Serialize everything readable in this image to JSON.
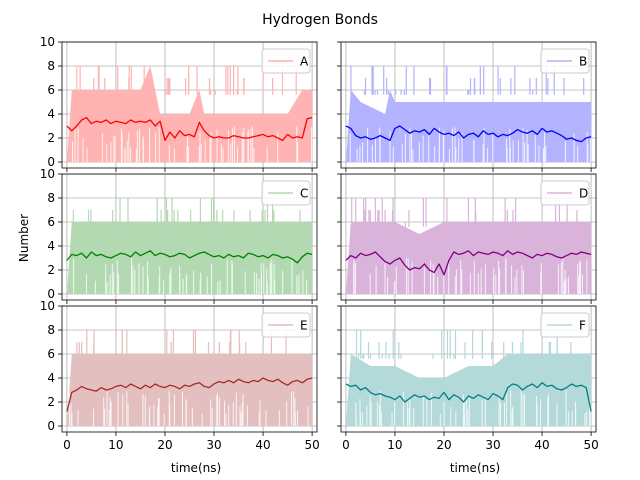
{
  "figure": {
    "title": "Hydrogen Bonds",
    "ylabel": "Number",
    "xlabel": "time(ns)"
  },
  "chart_data": {
    "type": "line",
    "title": "Hydrogen Bonds",
    "xlabel": "time(ns)",
    "ylabel": "Number",
    "xlim": [
      -1,
      51
    ],
    "ylim": [
      -0.5,
      10
    ],
    "xticks": [
      0,
      10,
      20,
      30,
      40,
      50
    ],
    "yticks": [
      0,
      2,
      4,
      6,
      8,
      10
    ],
    "grid": true,
    "layout": "3x2 subplots, shared x and y axes",
    "legend_placement": "upper right",
    "notes": "Each panel shows a raw hydrogen-bond count trace (light shaded vertical spikes, values 0-8) and a darker smoothed running-average line.",
    "panels": [
      {
        "name": "A",
        "color": "#ff0000",
        "fill": "#ffb3b3",
        "envelope": [
          [
            0,
            0
          ],
          [
            1,
            6
          ],
          [
            5,
            6
          ],
          [
            10,
            6
          ],
          [
            15,
            6
          ],
          [
            17,
            8
          ],
          [
            18,
            6
          ],
          [
            19,
            4
          ],
          [
            25,
            4
          ],
          [
            27,
            6
          ],
          [
            28,
            4
          ],
          [
            35,
            4
          ],
          [
            40,
            4
          ],
          [
            45,
            4
          ],
          [
            48,
            6
          ],
          [
            50,
            6
          ]
        ],
        "x": [
          0,
          1,
          2,
          3,
          4,
          5,
          6,
          7,
          8,
          9,
          10,
          11,
          12,
          13,
          14,
          15,
          16,
          17,
          18,
          19,
          20,
          21,
          22,
          23,
          24,
          25,
          26,
          27,
          28,
          29,
          30,
          31,
          32,
          33,
          34,
          35,
          36,
          37,
          38,
          39,
          40,
          41,
          42,
          43,
          44,
          45,
          46,
          47,
          48,
          49,
          50
        ],
        "y": [
          3.0,
          2.6,
          3.0,
          3.5,
          3.7,
          3.2,
          3.4,
          3.3,
          3.5,
          3.2,
          3.4,
          3.3,
          3.2,
          3.5,
          3.3,
          3.4,
          3.3,
          3.5,
          3.0,
          3.4,
          1.8,
          2.5,
          2.0,
          2.6,
          2.2,
          2.3,
          2.1,
          3.3,
          2.6,
          2.2,
          2.0,
          2.1,
          2.0,
          2.0,
          2.2,
          2.1,
          2.0,
          2.0,
          2.1,
          2.2,
          2.3,
          2.1,
          2.2,
          2.0,
          1.8,
          2.3,
          2.0,
          2.1,
          2.0,
          3.6,
          3.7
        ]
      },
      {
        "name": "B",
        "color": "#0000ff",
        "fill": "#b3b3ff",
        "envelope": [
          [
            0,
            0
          ],
          [
            1,
            6
          ],
          [
            3,
            5
          ],
          [
            8,
            4
          ],
          [
            9,
            6
          ],
          [
            10,
            5
          ],
          [
            20,
            5
          ],
          [
            25,
            5
          ],
          [
            30,
            5
          ],
          [
            40,
            5
          ],
          [
            45,
            5
          ],
          [
            50,
            5
          ]
        ],
        "x": [
          0,
          1,
          2,
          3,
          4,
          5,
          6,
          7,
          8,
          9,
          10,
          11,
          12,
          13,
          14,
          15,
          16,
          17,
          18,
          19,
          20,
          21,
          22,
          23,
          24,
          25,
          26,
          27,
          28,
          29,
          30,
          31,
          32,
          33,
          34,
          35,
          36,
          37,
          38,
          39,
          40,
          41,
          42,
          43,
          44,
          45,
          46,
          47,
          48,
          49,
          50
        ],
        "y": [
          3.0,
          2.8,
          2.2,
          2.0,
          2.1,
          1.9,
          2.0,
          2.2,
          2.0,
          1.8,
          2.8,
          3.0,
          2.7,
          2.4,
          2.6,
          2.5,
          2.7,
          2.3,
          2.8,
          2.5,
          2.3,
          2.4,
          2.2,
          2.5,
          2.0,
          2.3,
          2.4,
          2.1,
          2.6,
          2.3,
          2.4,
          2.1,
          2.3,
          2.2,
          2.4,
          2.7,
          2.5,
          2.4,
          2.6,
          2.3,
          2.8,
          2.5,
          2.6,
          2.4,
          2.2,
          1.9,
          2.0,
          1.8,
          1.7,
          2.0,
          2.1
        ]
      },
      {
        "name": "C",
        "color": "#008000",
        "fill": "#b3d9b3",
        "envelope": [
          [
            0,
            0
          ],
          [
            1,
            6
          ],
          [
            10,
            6
          ],
          [
            20,
            6
          ],
          [
            30,
            6
          ],
          [
            40,
            6
          ],
          [
            50,
            6
          ]
        ],
        "x": [
          0,
          1,
          2,
          3,
          4,
          5,
          6,
          7,
          8,
          9,
          10,
          11,
          12,
          13,
          14,
          15,
          16,
          17,
          18,
          19,
          20,
          21,
          22,
          23,
          24,
          25,
          26,
          27,
          28,
          29,
          30,
          31,
          32,
          33,
          34,
          35,
          36,
          37,
          38,
          39,
          40,
          41,
          42,
          43,
          44,
          45,
          46,
          47,
          48,
          49,
          50
        ],
        "y": [
          2.8,
          3.3,
          3.2,
          3.4,
          3.0,
          3.5,
          3.2,
          3.3,
          3.1,
          3.0,
          3.2,
          3.4,
          3.3,
          3.1,
          3.5,
          3.2,
          3.4,
          3.6,
          3.2,
          3.4,
          3.3,
          3.1,
          3.2,
          3.4,
          3.3,
          3.0,
          3.2,
          3.4,
          3.5,
          3.3,
          3.1,
          3.2,
          3.0,
          3.3,
          3.1,
          3.2,
          3.0,
          3.4,
          3.3,
          3.1,
          3.2,
          3.0,
          3.3,
          3.2,
          3.0,
          3.1,
          2.9,
          2.6,
          3.1,
          3.4,
          3.3
        ]
      },
      {
        "name": "D",
        "color": "#800080",
        "fill": "#d9b3d9",
        "envelope": [
          [
            0,
            0
          ],
          [
            1,
            6
          ],
          [
            5,
            6
          ],
          [
            10,
            6
          ],
          [
            15,
            5
          ],
          [
            20,
            6
          ],
          [
            25,
            6
          ],
          [
            30,
            6
          ],
          [
            40,
            6
          ],
          [
            50,
            6
          ]
        ],
        "x": [
          0,
          1,
          2,
          3,
          4,
          5,
          6,
          7,
          8,
          9,
          10,
          11,
          12,
          13,
          14,
          15,
          16,
          17,
          18,
          19,
          20,
          21,
          22,
          23,
          24,
          25,
          26,
          27,
          28,
          29,
          30,
          31,
          32,
          33,
          34,
          35,
          36,
          37,
          38,
          39,
          40,
          41,
          42,
          43,
          44,
          45,
          46,
          47,
          48,
          49,
          50
        ],
        "y": [
          2.8,
          3.2,
          3.0,
          3.4,
          3.2,
          3.3,
          3.5,
          3.1,
          2.7,
          2.5,
          2.8,
          3.0,
          2.4,
          2.0,
          2.2,
          2.1,
          2.5,
          2.0,
          1.8,
          2.5,
          1.6,
          2.8,
          3.5,
          3.3,
          3.4,
          3.6,
          3.2,
          3.5,
          3.4,
          3.3,
          3.5,
          3.4,
          3.2,
          3.6,
          3.3,
          3.5,
          3.4,
          3.2,
          3.0,
          3.3,
          3.2,
          3.4,
          3.3,
          3.1,
          3.0,
          3.2,
          3.4,
          3.3,
          3.5,
          3.4,
          3.3
        ]
      },
      {
        "name": "E",
        "color": "#a52a2a",
        "fill": "#e4bfbf",
        "envelope": [
          [
            0,
            0
          ],
          [
            1,
            6
          ],
          [
            10,
            6
          ],
          [
            20,
            6
          ],
          [
            30,
            6
          ],
          [
            40,
            6
          ],
          [
            50,
            6
          ]
        ],
        "x": [
          0,
          1,
          2,
          3,
          4,
          5,
          6,
          7,
          8,
          9,
          10,
          11,
          12,
          13,
          14,
          15,
          16,
          17,
          18,
          19,
          20,
          21,
          22,
          23,
          24,
          25,
          26,
          27,
          28,
          29,
          30,
          31,
          32,
          33,
          34,
          35,
          36,
          37,
          38,
          39,
          40,
          41,
          42,
          43,
          44,
          45,
          46,
          47,
          48,
          49,
          50
        ],
        "y": [
          1.2,
          2.8,
          3.0,
          3.3,
          3.1,
          3.0,
          2.9,
          3.2,
          3.0,
          3.1,
          3.3,
          3.4,
          3.2,
          3.5,
          3.3,
          3.1,
          3.4,
          3.2,
          3.5,
          3.3,
          3.2,
          3.4,
          3.3,
          3.1,
          3.4,
          3.3,
          3.5,
          3.6,
          3.3,
          3.2,
          3.5,
          3.7,
          3.6,
          3.8,
          3.6,
          3.9,
          3.7,
          3.6,
          3.8,
          3.7,
          4.0,
          3.8,
          3.7,
          3.9,
          3.6,
          3.4,
          3.7,
          3.8,
          3.6,
          3.9,
          4.0
        ]
      },
      {
        "name": "F",
        "color": "#008080",
        "fill": "#b3d9d9",
        "envelope": [
          [
            0,
            0
          ],
          [
            1,
            6
          ],
          [
            5,
            5
          ],
          [
            10,
            5
          ],
          [
            15,
            4
          ],
          [
            20,
            4
          ],
          [
            25,
            5
          ],
          [
            30,
            5
          ],
          [
            33,
            6
          ],
          [
            40,
            6
          ],
          [
            45,
            6
          ],
          [
            50,
            6
          ]
        ],
        "x": [
          0,
          1,
          2,
          3,
          4,
          5,
          6,
          7,
          8,
          9,
          10,
          11,
          12,
          13,
          14,
          15,
          16,
          17,
          18,
          19,
          20,
          21,
          22,
          23,
          24,
          25,
          26,
          27,
          28,
          29,
          30,
          31,
          32,
          33,
          34,
          35,
          36,
          37,
          38,
          39,
          40,
          41,
          42,
          43,
          44,
          45,
          46,
          47,
          48,
          49,
          50
        ],
        "y": [
          3.5,
          3.3,
          3.4,
          3.0,
          3.2,
          2.8,
          2.6,
          2.7,
          2.5,
          2.4,
          2.2,
          2.5,
          2.0,
          2.3,
          2.6,
          2.4,
          2.5,
          2.2,
          2.4,
          2.3,
          2.8,
          2.2,
          2.6,
          2.4,
          2.0,
          2.5,
          2.3,
          2.6,
          2.4,
          2.2,
          2.7,
          2.5,
          2.2,
          3.2,
          3.5,
          3.4,
          3.0,
          3.3,
          3.5,
          3.2,
          3.6,
          3.3,
          3.4,
          3.1,
          3.0,
          3.2,
          3.5,
          3.3,
          3.4,
          3.2,
          1.2
        ]
      }
    ]
  }
}
